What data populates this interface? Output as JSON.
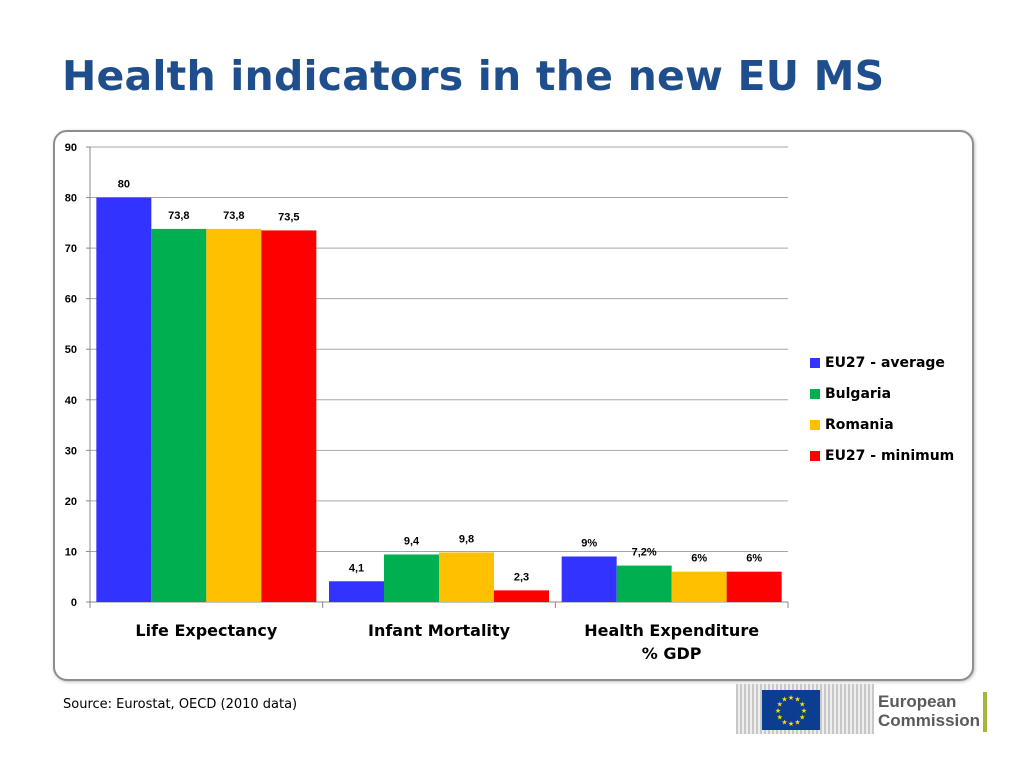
{
  "slide": {
    "title": "Health indicators in the new EU MS",
    "source": "Source: Eurostat, OECD (2010 data)"
  },
  "logo": {
    "text_line1": "European",
    "text_line2": "Commission"
  },
  "chart_data": {
    "type": "bar",
    "categories": [
      "Life Expectancy",
      "Infant Mortality",
      "Health Expenditure\n% GDP"
    ],
    "series": [
      {
        "name": "EU27 - average",
        "color": "#3333ff",
        "values": [
          80,
          4.1,
          9
        ],
        "labels": [
          "80",
          "4,1",
          "9%"
        ]
      },
      {
        "name": "Bulgaria",
        "color": "#00b050",
        "values": [
          73.8,
          9.4,
          7.2
        ],
        "labels": [
          "73,8",
          "9,4",
          "7,2%"
        ]
      },
      {
        "name": "Romania",
        "color": "#ffc000",
        "values": [
          73.8,
          9.8,
          6
        ],
        "labels": [
          "73,8",
          "9,8",
          "6%"
        ]
      },
      {
        "name": "EU27 - minimum",
        "color": "#ff0000",
        "values": [
          73.5,
          2.3,
          6
        ],
        "labels": [
          "73,5",
          "2,3",
          "6%"
        ]
      }
    ],
    "ylim": [
      0,
      90
    ],
    "yticks": [
      0,
      10,
      20,
      30,
      40,
      50,
      60,
      70,
      80,
      90
    ],
    "grid": true,
    "legend_position": "right"
  }
}
